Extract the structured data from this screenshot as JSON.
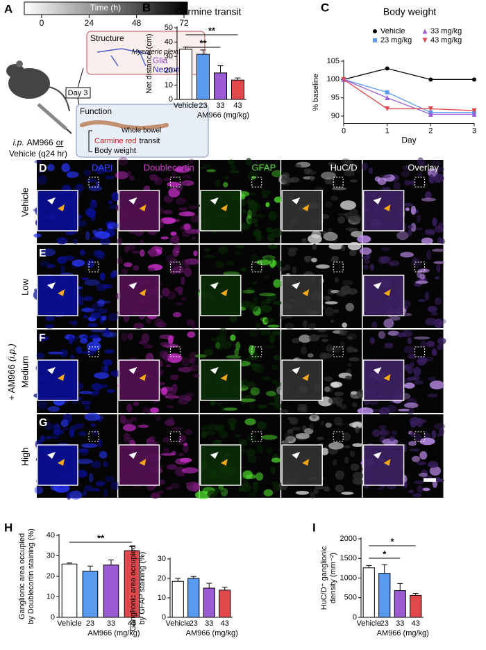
{
  "panel_a": {
    "panel": "A",
    "timeline": {
      "label": "Time (h)",
      "ticks": [
        0,
        24,
        48,
        72
      ]
    },
    "structure": {
      "title": "Structure",
      "subtitle": "Myenteric plexus",
      "items": [
        "Glia",
        "Neurons"
      ]
    },
    "day": "Day 3",
    "injection": {
      "route": "i.p.",
      "drug": "AM966",
      "or": "or",
      "vehicle": "Vehicle (q24 hr)"
    },
    "function": {
      "title": "Function",
      "organ": "Whole bowel",
      "readout_1_dye": "Carmine red",
      "readout_1_rest": "transit",
      "readout_2": "Body weight"
    }
  },
  "chart_data": [
    {
      "type": "bar",
      "panel": "B",
      "title": "Carmine transit",
      "y_label": [
        "Net distance (cm)"
      ],
      "x_label": "AM966 (mg/kg)",
      "categories": [
        "Vehicle",
        "23",
        "33",
        "43"
      ],
      "values": [
        35,
        31.5,
        18.5,
        13.5
      ],
      "errors": [
        1.5,
        3,
        5,
        1.5
      ],
      "colors": [
        "#ffffff",
        "#5b9bef",
        "#9b5bd3",
        "#e0484b"
      ],
      "ylim": [
        0,
        50
      ],
      "yticks": [
        0,
        10,
        20,
        30,
        40,
        50
      ],
      "annotations": [
        {
          "label": "**",
          "between": [
            "Vehicle",
            "43"
          ]
        },
        {
          "label": "**",
          "between": [
            "Vehicle",
            "33"
          ]
        }
      ]
    },
    {
      "type": "line",
      "panel": "C",
      "title": "Body weight",
      "y_label": [
        "% baseline"
      ],
      "x_label": "Day",
      "x": [
        0,
        1,
        2,
        3
      ],
      "xlim": [
        0,
        3
      ],
      "xticks": [
        0,
        1,
        2,
        3
      ],
      "ylim": [
        88,
        105
      ],
      "yticks": [
        90,
        95,
        100,
        105
      ],
      "series": [
        {
          "name": "Vehicle",
          "color": "#000000",
          "marker": "circle",
          "values": [
            100,
            103,
            100,
            100
          ]
        },
        {
          "name": "23 mg/kg",
          "color": "#5b9bef",
          "marker": "square",
          "values": [
            100,
            96.5,
            91,
            91
          ]
        },
        {
          "name": "33 mg/kg",
          "color": "#9b5bd3",
          "marker": "triangle-up",
          "values": [
            100,
            95,
            90.5,
            90.5
          ]
        },
        {
          "name": "43 mg/kg",
          "color": "#e0484b",
          "marker": "triangle-down",
          "values": [
            100,
            92,
            92,
            91.5
          ]
        }
      ]
    },
    {
      "type": "bar",
      "panel": "H",
      "y_label": [
        "Ganglionic area occupied",
        "by Doublecortin staining (%)"
      ],
      "x_label": "AM966 (mg/kg)",
      "categories": [
        "Vehicle",
        "23",
        "33",
        "43"
      ],
      "values": [
        26,
        22.5,
        25.5,
        32.5
      ],
      "errors": [
        0.5,
        2.5,
        2.5,
        2
      ],
      "colors": [
        "#ffffff",
        "#5b9bef",
        "#9b5bd3",
        "#e0484b"
      ],
      "ylim": [
        0,
        40
      ],
      "yticks": [
        0,
        10,
        20,
        30,
        40
      ],
      "annotations": [
        {
          "label": "**",
          "between": [
            "Vehicle",
            "43"
          ]
        }
      ]
    },
    {
      "type": "bar",
      "y_label": [
        "Ganglionic area occupied",
        "by GFAP staining (%)"
      ],
      "x_label": "AM966 (mg/kg)",
      "categories": [
        "Vehicle",
        "23",
        "33",
        "43"
      ],
      "values": [
        18.5,
        20,
        15,
        14
      ],
      "errors": [
        1.5,
        1,
        2.5,
        1.5
      ],
      "colors": [
        "#ffffff",
        "#5b9bef",
        "#9b5bd3",
        "#e0484b"
      ],
      "ylim": [
        0,
        30
      ],
      "yticks": [
        0,
        10,
        20,
        30
      ],
      "annotations": []
    },
    {
      "type": "bar",
      "panel": "I",
      "y_label": [
        "HuC/D⁺ ganglionic",
        "density (mm⁻²)"
      ],
      "x_label": "AM966 (mg/kg)",
      "categories": [
        "Vehicle",
        "23",
        "33",
        "43"
      ],
      "values": [
        1260,
        1120,
        680,
        560
      ],
      "errors": [
        60,
        220,
        180,
        50
      ],
      "colors": [
        "#ffffff",
        "#5b9bef",
        "#9b5bd3",
        "#e0484b"
      ],
      "ylim": [
        0,
        2000
      ],
      "yticks": [
        0,
        500,
        1000,
        1500,
        2000
      ],
      "annotations": [
        {
          "label": "*",
          "between": [
            "Vehicle",
            "43"
          ]
        },
        {
          "label": "*",
          "between": [
            "Vehicle",
            "33"
          ]
        }
      ]
    }
  ],
  "microscopy": {
    "channels": [
      "DAPI",
      "Doublecortin",
      "GFAP",
      "HuC/D",
      "Overlay"
    ],
    "rows": [
      {
        "panel": "D",
        "label": "Vehicle"
      },
      {
        "panel": "E",
        "label": "Low"
      },
      {
        "panel": "F",
        "label": "Medium"
      },
      {
        "panel": "G",
        "label": "High"
      }
    ],
    "group_label": "+ AM966",
    "group_label_route": "(i.p.)"
  }
}
